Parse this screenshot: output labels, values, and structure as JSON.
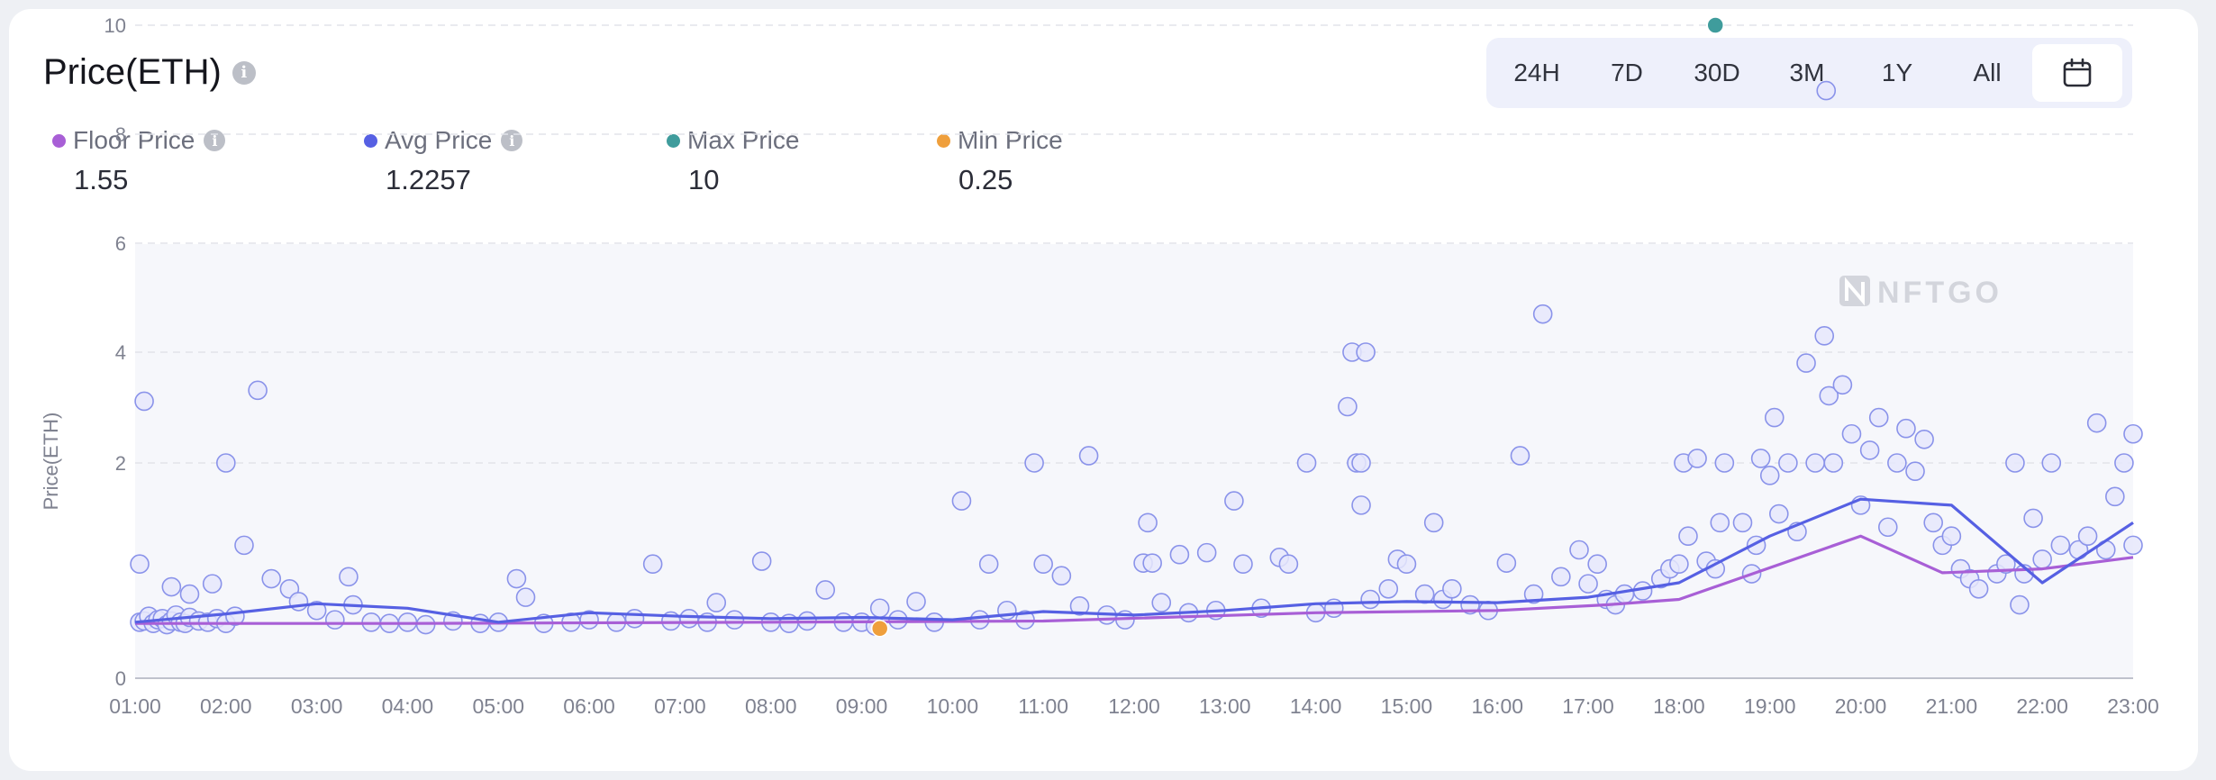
{
  "header": {
    "title": "Price(ETH)",
    "ranges": [
      "24H",
      "7D",
      "30D",
      "3M",
      "1Y",
      "All"
    ],
    "active_range": "calendar"
  },
  "legend": [
    {
      "label": "Floor Price",
      "value": "1.55",
      "color": "#a85fd6",
      "info": true
    },
    {
      "label": "Avg Price",
      "value": "1.2257",
      "color": "#5660e3",
      "info": true
    },
    {
      "label": "Max Price",
      "value": "10",
      "color": "#3f9c9c",
      "info": false
    },
    {
      "label": "Min Price",
      "value": "0.25",
      "color": "#ef9f3c",
      "info": false
    }
  ],
  "watermark": "NFTGO",
  "chart_data": {
    "type": "scatter",
    "ylabel": "Price(ETH)",
    "yticks": [
      "0",
      "2",
      "4",
      "6",
      "8",
      "10"
    ],
    "xticks": [
      "01:00",
      "02:00",
      "03:00",
      "04:00",
      "05:00",
      "06:00",
      "07:00",
      "08:00",
      "09:00",
      "10:00",
      "11:00",
      "12:00",
      "13:00",
      "14:00",
      "15:00",
      "16:00",
      "17:00",
      "18:00",
      "19:00",
      "20:00",
      "21:00",
      "22:00",
      "23:00"
    ],
    "grid": true,
    "series": [
      {
        "name": "Floor Price",
        "color": "#a85fd6",
        "type": "line",
        "points": [
          [
            1.0,
            0.29
          ],
          [
            4.0,
            0.29
          ],
          [
            8.0,
            0.3
          ],
          [
            11.0,
            0.31
          ],
          [
            14.0,
            0.38
          ],
          [
            16.0,
            0.4
          ],
          [
            17.2,
            0.45
          ],
          [
            18.0,
            0.5
          ],
          [
            20.0,
            1.15
          ],
          [
            20.9,
            0.76
          ],
          [
            22.0,
            0.8
          ],
          [
            23.0,
            0.92
          ]
        ]
      },
      {
        "name": "Avg Price",
        "color": "#5660e3",
        "type": "line",
        "points": [
          [
            1.0,
            0.3
          ],
          [
            2.0,
            0.37
          ],
          [
            3.0,
            0.46
          ],
          [
            4.0,
            0.42
          ],
          [
            5.0,
            0.3
          ],
          [
            6.0,
            0.38
          ],
          [
            7.0,
            0.35
          ],
          [
            8.0,
            0.33
          ],
          [
            9.0,
            0.34
          ],
          [
            10.0,
            0.32
          ],
          [
            11.0,
            0.39
          ],
          [
            12.0,
            0.36
          ],
          [
            13.0,
            0.4
          ],
          [
            14.0,
            0.46
          ],
          [
            15.0,
            0.48
          ],
          [
            16.0,
            0.47
          ],
          [
            17.0,
            0.52
          ],
          [
            18.0,
            0.66
          ],
          [
            19.0,
            1.15
          ],
          [
            20.0,
            1.57
          ],
          [
            21.0,
            1.5
          ],
          [
            22.0,
            0.66
          ],
          [
            23.0,
            1.3
          ]
        ]
      },
      {
        "name": "Max Price",
        "color": "#3f9c9c",
        "type": "point",
        "points": [
          [
            18.4,
            10
          ]
        ]
      },
      {
        "name": "Min Price",
        "color": "#ef9f3c",
        "type": "point",
        "points": [
          [
            9.2,
            0.25
          ]
        ]
      },
      {
        "name": "Sales",
        "color": "#7b86e8",
        "type": "scatter",
        "points": [
          [
            1.05,
            0.3
          ],
          [
            1.1,
            0.31
          ],
          [
            1.15,
            0.35
          ],
          [
            1.2,
            0.29
          ],
          [
            1.25,
            0.32
          ],
          [
            1.3,
            0.33
          ],
          [
            1.35,
            0.28
          ],
          [
            1.4,
            0.31
          ],
          [
            1.45,
            0.36
          ],
          [
            1.5,
            0.3
          ],
          [
            1.55,
            0.29
          ],
          [
            1.6,
            0.34
          ],
          [
            1.7,
            0.31
          ],
          [
            1.8,
            0.3
          ],
          [
            1.9,
            0.33
          ],
          [
            2.0,
            0.29
          ],
          [
            2.1,
            0.35
          ],
          [
            1.1,
            3.1
          ],
          [
            1.05,
            0.85
          ],
          [
            1.4,
            0.62
          ],
          [
            1.6,
            0.55
          ],
          [
            1.85,
            0.65
          ],
          [
            2.0,
            2.0
          ],
          [
            2.2,
            1.05
          ],
          [
            2.35,
            3.3
          ],
          [
            2.5,
            0.7
          ],
          [
            2.7,
            0.6
          ],
          [
            2.8,
            0.48
          ],
          [
            3.0,
            0.4
          ],
          [
            3.2,
            0.32
          ],
          [
            3.35,
            0.72
          ],
          [
            3.4,
            0.45
          ],
          [
            3.6,
            0.3
          ],
          [
            3.8,
            0.29
          ],
          [
            4.0,
            0.3
          ],
          [
            4.2,
            0.28
          ],
          [
            4.5,
            0.31
          ],
          [
            4.8,
            0.29
          ],
          [
            5.0,
            0.3
          ],
          [
            5.2,
            0.7
          ],
          [
            5.3,
            0.52
          ],
          [
            5.5,
            0.29
          ],
          [
            5.8,
            0.3
          ],
          [
            6.0,
            0.32
          ],
          [
            6.3,
            0.3
          ],
          [
            6.5,
            0.33
          ],
          [
            6.7,
            0.85
          ],
          [
            6.9,
            0.31
          ],
          [
            7.1,
            0.33
          ],
          [
            7.3,
            0.3
          ],
          [
            7.4,
            0.47
          ],
          [
            7.6,
            0.32
          ],
          [
            7.9,
            0.88
          ],
          [
            8.0,
            0.3
          ],
          [
            8.2,
            0.29
          ],
          [
            8.4,
            0.31
          ],
          [
            8.6,
            0.59
          ],
          [
            8.8,
            0.3
          ],
          [
            9.0,
            0.3
          ],
          [
            9.2,
            0.42
          ],
          [
            9.15,
            0.27
          ],
          [
            9.4,
            0.32
          ],
          [
            9.6,
            0.48
          ],
          [
            9.8,
            0.3
          ],
          [
            10.1,
            1.55
          ],
          [
            10.3,
            0.32
          ],
          [
            10.4,
            0.85
          ],
          [
            10.6,
            0.4
          ],
          [
            10.9,
            2.0
          ],
          [
            10.8,
            0.32
          ],
          [
            11.0,
            0.85
          ],
          [
            11.2,
            0.73
          ],
          [
            11.4,
            0.44
          ],
          [
            11.5,
            2.1
          ],
          [
            11.7,
            0.36
          ],
          [
            11.9,
            0.32
          ],
          [
            12.1,
            0.86
          ],
          [
            12.15,
            1.3
          ],
          [
            12.2,
            0.86
          ],
          [
            12.3,
            0.47
          ],
          [
            12.5,
            0.95
          ],
          [
            12.6,
            0.38
          ],
          [
            12.8,
            0.97
          ],
          [
            12.9,
            0.4
          ],
          [
            13.1,
            1.55
          ],
          [
            13.2,
            0.85
          ],
          [
            13.4,
            0.42
          ],
          [
            13.6,
            0.92
          ],
          [
            13.7,
            0.85
          ],
          [
            13.9,
            2.0
          ],
          [
            14.0,
            0.38
          ],
          [
            14.2,
            0.42
          ],
          [
            14.35,
            3.0
          ],
          [
            14.4,
            4.0
          ],
          [
            14.45,
            2.0
          ],
          [
            14.5,
            1.5
          ],
          [
            14.55,
            4.0
          ],
          [
            14.5,
            2.0
          ],
          [
            14.6,
            0.5
          ],
          [
            14.8,
            0.6
          ],
          [
            14.9,
            0.9
          ],
          [
            15.0,
            0.85
          ],
          [
            15.2,
            0.55
          ],
          [
            15.3,
            1.3
          ],
          [
            15.4,
            0.5
          ],
          [
            15.5,
            0.6
          ],
          [
            15.7,
            0.45
          ],
          [
            15.9,
            0.4
          ],
          [
            16.1,
            0.86
          ],
          [
            16.25,
            2.1
          ],
          [
            16.4,
            0.55
          ],
          [
            16.5,
            4.7
          ],
          [
            16.7,
            0.72
          ],
          [
            16.9,
            1.0
          ],
          [
            17.0,
            0.65
          ],
          [
            17.1,
            0.85
          ],
          [
            17.2,
            0.5
          ],
          [
            17.3,
            0.45
          ],
          [
            17.4,
            0.55
          ],
          [
            17.6,
            0.58
          ],
          [
            17.8,
            0.7
          ],
          [
            17.9,
            0.8
          ],
          [
            18.0,
            0.85
          ],
          [
            18.05,
            2.0
          ],
          [
            18.1,
            1.15
          ],
          [
            18.2,
            2.05
          ],
          [
            18.3,
            0.88
          ],
          [
            18.4,
            0.8
          ],
          [
            18.45,
            1.3
          ],
          [
            18.5,
            2.0
          ],
          [
            18.7,
            1.3
          ],
          [
            18.8,
            0.75
          ],
          [
            18.85,
            1.05
          ],
          [
            18.9,
            2.05
          ],
          [
            19.0,
            1.85
          ],
          [
            19.05,
            2.8
          ],
          [
            19.1,
            1.4
          ],
          [
            19.2,
            2.0
          ],
          [
            19.3,
            1.2
          ],
          [
            19.4,
            3.8
          ],
          [
            19.5,
            2.0
          ],
          [
            19.6,
            4.3
          ],
          [
            19.65,
            3.2
          ],
          [
            19.7,
            2.0
          ],
          [
            19.8,
            3.4
          ],
          [
            19.9,
            2.5
          ],
          [
            19.62,
            8.8
          ],
          [
            20.0,
            1.5
          ],
          [
            20.1,
            2.2
          ],
          [
            20.2,
            2.8
          ],
          [
            20.3,
            1.25
          ],
          [
            20.4,
            2.0
          ],
          [
            20.5,
            2.6
          ],
          [
            20.6,
            1.9
          ],
          [
            20.7,
            2.4
          ],
          [
            20.8,
            1.3
          ],
          [
            20.9,
            1.05
          ],
          [
            21.0,
            1.15
          ],
          [
            21.1,
            0.8
          ],
          [
            21.2,
            0.7
          ],
          [
            21.3,
            0.6
          ],
          [
            21.5,
            0.75
          ],
          [
            21.6,
            0.85
          ],
          [
            21.7,
            2.0
          ],
          [
            21.75,
            0.45
          ],
          [
            21.8,
            0.75
          ],
          [
            21.9,
            1.35
          ],
          [
            22.0,
            0.9
          ],
          [
            22.1,
            2.0
          ],
          [
            22.2,
            1.05
          ],
          [
            22.4,
            1.0
          ],
          [
            22.5,
            1.15
          ],
          [
            22.6,
            2.7
          ],
          [
            22.7,
            1.0
          ],
          [
            22.8,
            1.6
          ],
          [
            22.9,
            2.0
          ],
          [
            23.0,
            2.5
          ],
          [
            23.0,
            1.05
          ]
        ]
      }
    ]
  }
}
